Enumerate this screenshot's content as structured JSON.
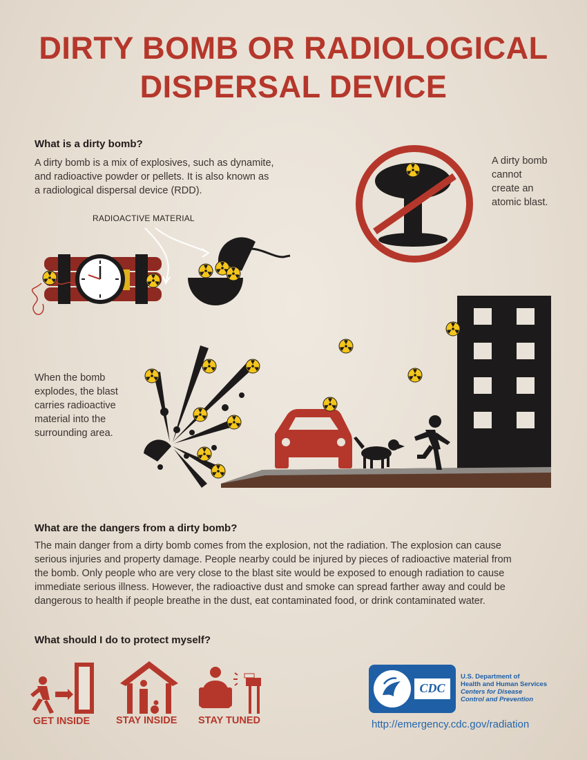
{
  "title": {
    "line1": "DIRTY BOMB OR RADIOLOGICAL",
    "line2": "DISPERSAL DEVICE"
  },
  "what_is": {
    "heading": "What is a dirty bomb?",
    "line1": "A dirty bomb is a mix of explosives, such as dynamite,",
    "line2": "and radioactive powder or pellets.  It is also known as",
    "line3": "a radiological dispersal device (RDD).",
    "radioactive_label": "RADIOACTIVE MATERIAL"
  },
  "no_atomic": {
    "line1": "A dirty bomb",
    "line2": "cannot",
    "line3": "create an",
    "line4": "atomic blast."
  },
  "explodes": {
    "line1": "When the bomb",
    "line2": "explodes, the blast",
    "line3": "carries radioactive",
    "line4": "material into the",
    "line5": "surrounding area."
  },
  "dangers": {
    "heading": "What are the dangers from a dirty bomb?",
    "line1": "The main danger from a dirty bomb comes from the explosion, not the radiation. The explosion can cause",
    "line2": "serious injuries and property damage. People nearby could be injured by pieces of radioactive material from",
    "line3": "the bomb. Only people who are very close to the blast site would be exposed to enough radiation to cause",
    "line4": "immediate serious illness. However, the radioactive dust and smoke can spread farther away and could be",
    "line5": "dangerous to health if people breathe in the dust, eat contaminated food, or drink contaminated water."
  },
  "protect": {
    "heading": "What should I do to protect myself?",
    "actions": [
      "GET INSIDE",
      "STAY INSIDE",
      "STAY TUNED"
    ]
  },
  "footer": {
    "hhs_line1": "U.S. Department of",
    "hhs_line2": "Health and Human Services",
    "cdc_line1": "Centers for Disease",
    "cdc_line2": "Control and Prevention",
    "cdc_logo_text": "CDC",
    "url": "http://emergency.cdc.gov/radiation"
  },
  "colors": {
    "accent_red": "#b5372b",
    "dark": "#1c1a1a",
    "radiation_yellow": "#f4c51b",
    "link_blue": "#2466ab",
    "hhs_blue": "#1f5fa6",
    "ground_brown": "#5e3a2a"
  }
}
